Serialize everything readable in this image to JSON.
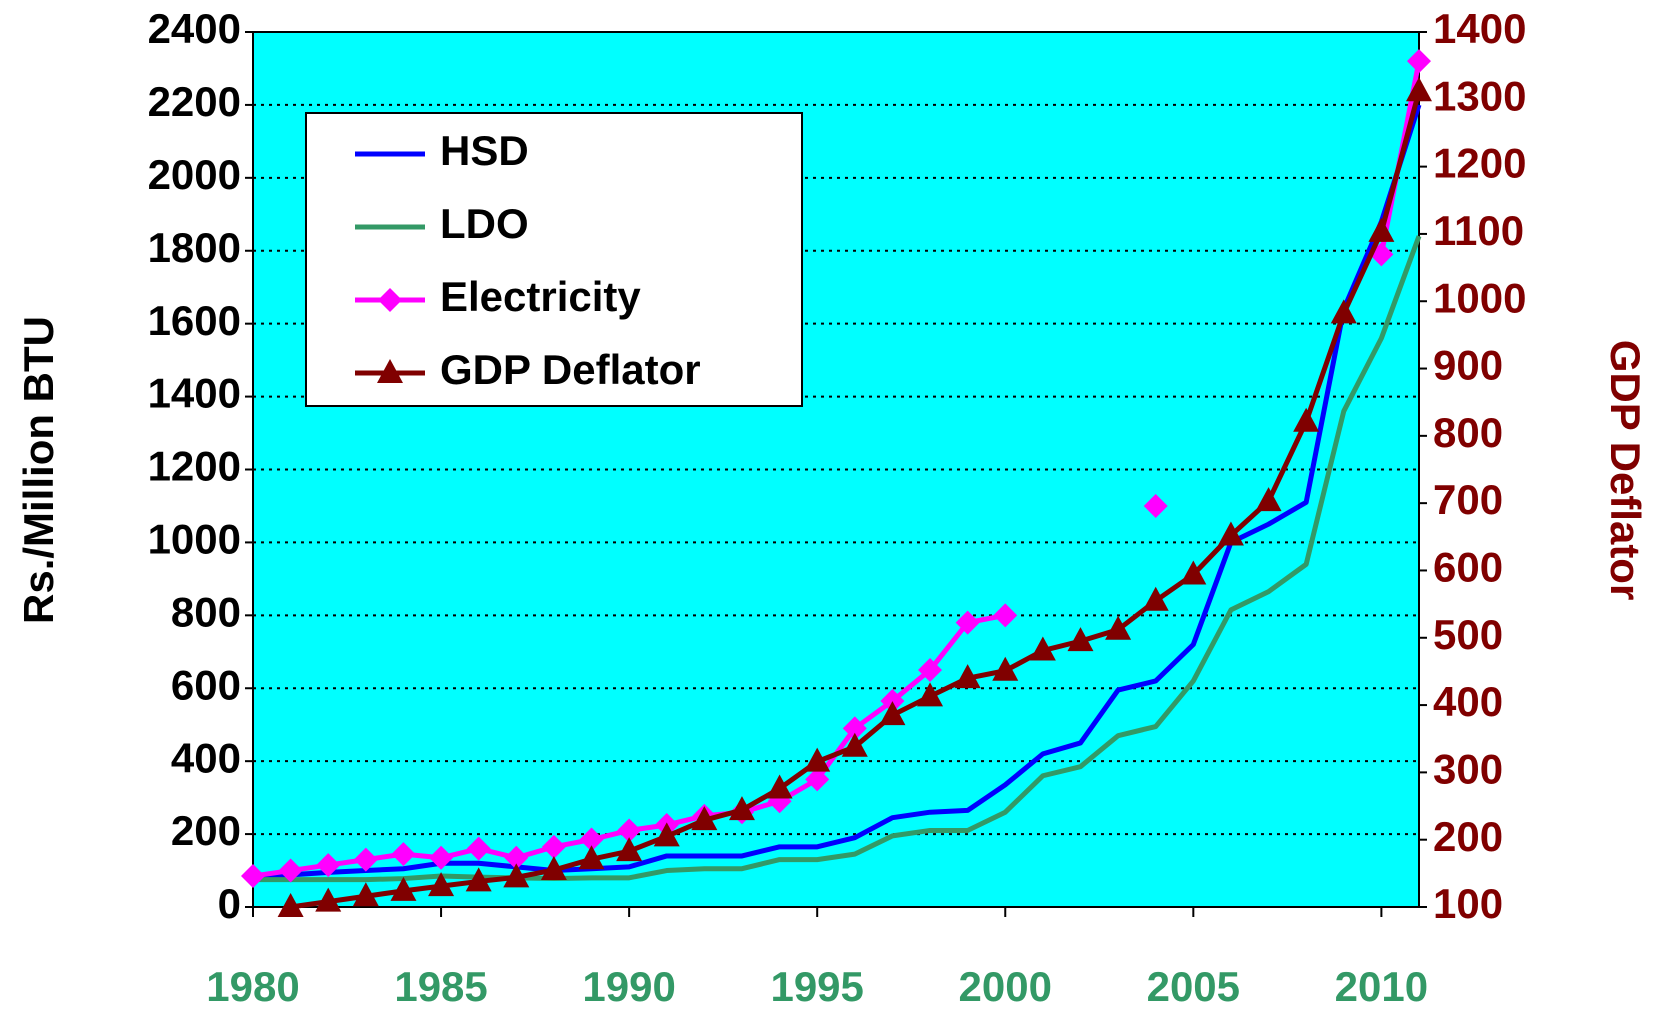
{
  "chart_data": {
    "type": "line",
    "x": [
      1980,
      1981,
      1982,
      1983,
      1984,
      1985,
      1986,
      1987,
      1988,
      1989,
      1990,
      1991,
      1992,
      1993,
      1994,
      1995,
      1996,
      1997,
      1998,
      1999,
      2000,
      2001,
      2002,
      2003,
      2004,
      2005,
      2006,
      2007,
      2008,
      2009,
      2010,
      2011
    ],
    "xlim": [
      1980,
      2011
    ],
    "xticks": [
      1980,
      1985,
      1990,
      1995,
      2000,
      2005,
      2010
    ],
    "ylim": [
      0,
      2400
    ],
    "yticks": [
      0,
      200,
      400,
      600,
      800,
      1000,
      1200,
      1400,
      1600,
      1800,
      2000,
      2200,
      2400
    ],
    "y2lim": [
      100,
      1400
    ],
    "y2ticks": [
      100,
      200,
      300,
      400,
      500,
      600,
      700,
      800,
      900,
      1000,
      1100,
      1200,
      1300,
      1400
    ],
    "ylabel": "Rs./Million BTU",
    "y2label": "GDP Deflator",
    "grid": true,
    "legend": "upper left",
    "background": "#00ffff",
    "series": [
      {
        "name": "HSD",
        "color": "#0000ff",
        "marker": "none",
        "values": [
          85,
          88,
          95,
          100,
          105,
          120,
          120,
          110,
          100,
          105,
          110,
          140,
          140,
          140,
          165,
          165,
          190,
          245,
          260,
          265,
          335,
          420,
          450,
          595,
          620,
          720,
          1000,
          1050,
          1110,
          1640,
          1880,
          2200
        ]
      },
      {
        "name": "LDO",
        "color": "#339966",
        "marker": "none",
        "values": [
          75,
          75,
          75,
          75,
          78,
          85,
          82,
          80,
          78,
          80,
          80,
          100,
          105,
          105,
          130,
          130,
          145,
          195,
          210,
          210,
          260,
          360,
          385,
          470,
          495,
          620,
          815,
          865,
          940,
          1360,
          1560,
          1840
        ]
      },
      {
        "name": "Electricity",
        "color": "#ff00ff",
        "marker": "diamond",
        "values": [
          85,
          100,
          115,
          130,
          145,
          135,
          160,
          135,
          165,
          185,
          210,
          225,
          250,
          260,
          290,
          350,
          490,
          565,
          650,
          780,
          800,
          null,
          null,
          null,
          1100,
          null,
          null,
          null,
          null,
          null,
          1790,
          2320
        ]
      },
      {
        "name": "GDP Deflator",
        "color": "#800000",
        "marker": "triangle",
        "axis": "y2",
        "values": [
          null,
          100,
          108,
          116,
          124,
          131,
          138,
          144,
          155,
          171,
          183,
          205,
          229,
          244,
          276,
          316,
          338,
          385,
          413,
          440,
          451,
          481,
          495,
          512,
          555,
          594,
          652,
          703,
          821,
          982,
          1103,
          1312
        ]
      }
    ]
  }
}
